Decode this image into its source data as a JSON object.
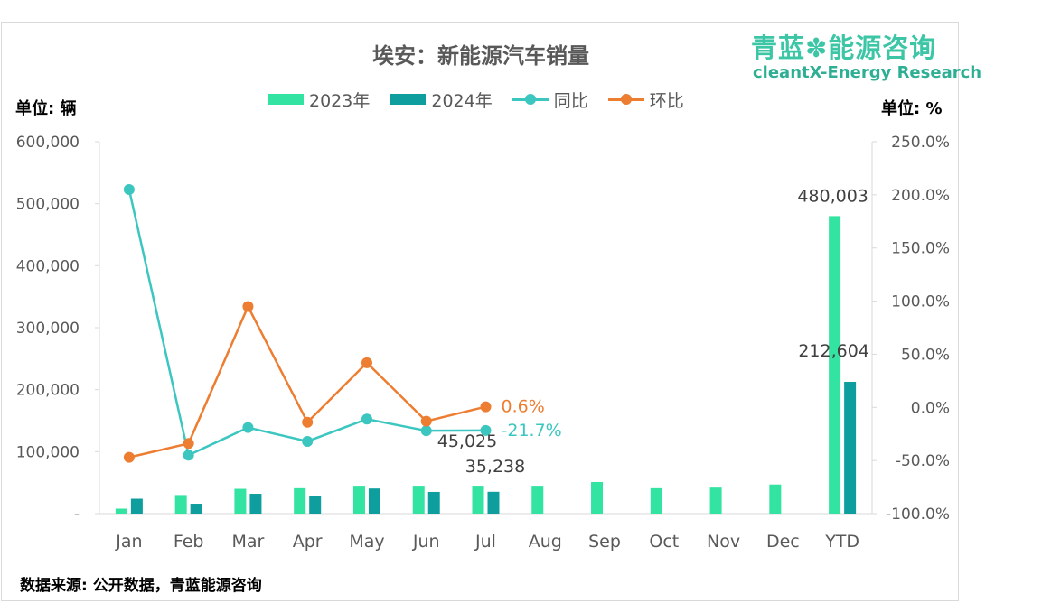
{
  "title": "埃安：新能源汽车销量",
  "brand": {
    "cn": "青蓝✽能源咨询",
    "en": "cleantX-Energy Research"
  },
  "units": {
    "left": "单位: 辆",
    "right": "单位: %"
  },
  "source": "数据来源: 公开数据，青蓝能源咨询",
  "legend": {
    "bar2023": "2023年",
    "bar2024": "2024年",
    "yoy": "同比",
    "mom": "环比"
  },
  "colors": {
    "bar2023": "#33e3a1",
    "bar2024": "#0f9e9e",
    "yoy": "#3cc6c0",
    "mom": "#ed7d31",
    "axis": "#595959",
    "gridline": "#d9d9d9"
  },
  "chart_data": {
    "type": "bar",
    "title": "埃安：新能源汽车销量",
    "categories": [
      "Jan",
      "Feb",
      "Mar",
      "Apr",
      "May",
      "Jun",
      "Jul",
      "Aug",
      "Sep",
      "Oct",
      "Nov",
      "Dec",
      "YTD"
    ],
    "y_left": {
      "label": "单位: 辆",
      "ylim": [
        0,
        600000
      ],
      "ticks": [
        0,
        100000,
        200000,
        300000,
        400000,
        500000,
        600000
      ],
      "tick_labels": [
        "-",
        "100,000",
        "200,000",
        "300,000",
        "400,000",
        "500,000",
        "600,000"
      ]
    },
    "y_right": {
      "label": "单位: %",
      "ylim": [
        -100,
        250
      ],
      "ticks": [
        -100,
        -50,
        0,
        50,
        100,
        150,
        200,
        250
      ],
      "tick_labels": [
        "-100.0%",
        "-50.0%",
        "0.0%",
        "50.0%",
        "100.0%",
        "150.0%",
        "200.0%",
        "250.0%"
      ]
    },
    "series": [
      {
        "name": "2023年",
        "kind": "bar",
        "axis": "left",
        "values": [
          8000,
          30000,
          40000,
          41000,
          45000,
          45000,
          45025,
          45000,
          51000,
          41000,
          42000,
          47000,
          480003
        ]
      },
      {
        "name": "2024年",
        "kind": "bar",
        "axis": "left",
        "values": [
          24000,
          16000,
          32000,
          28000,
          40500,
          35000,
          35238,
          null,
          null,
          null,
          null,
          null,
          212604
        ]
      },
      {
        "name": "同比",
        "kind": "line",
        "axis": "right",
        "values": [
          205,
          -45,
          -19,
          -32,
          -11,
          -22,
          -21.7,
          null,
          null,
          null,
          null,
          null,
          null
        ]
      },
      {
        "name": "环比",
        "kind": "line",
        "axis": "right",
        "values": [
          -47,
          -34,
          95,
          -14,
          42,
          -13,
          0.6,
          null,
          null,
          null,
          null,
          null,
          null
        ]
      }
    ],
    "data_labels": [
      {
        "series": "2023年",
        "category": "Jul",
        "text": "45,025"
      },
      {
        "series": "2024年",
        "category": "Jul",
        "text": "35,238"
      },
      {
        "series": "2023年",
        "category": "YTD",
        "text": "480,003"
      },
      {
        "series": "2024年",
        "category": "YTD",
        "text": "212,604"
      },
      {
        "series": "同比",
        "category": "Jul",
        "text": "-21.7%"
      },
      {
        "series": "环比",
        "category": "Jul",
        "text": "0.6%"
      }
    ],
    "grid": false,
    "legend_position": "top"
  }
}
